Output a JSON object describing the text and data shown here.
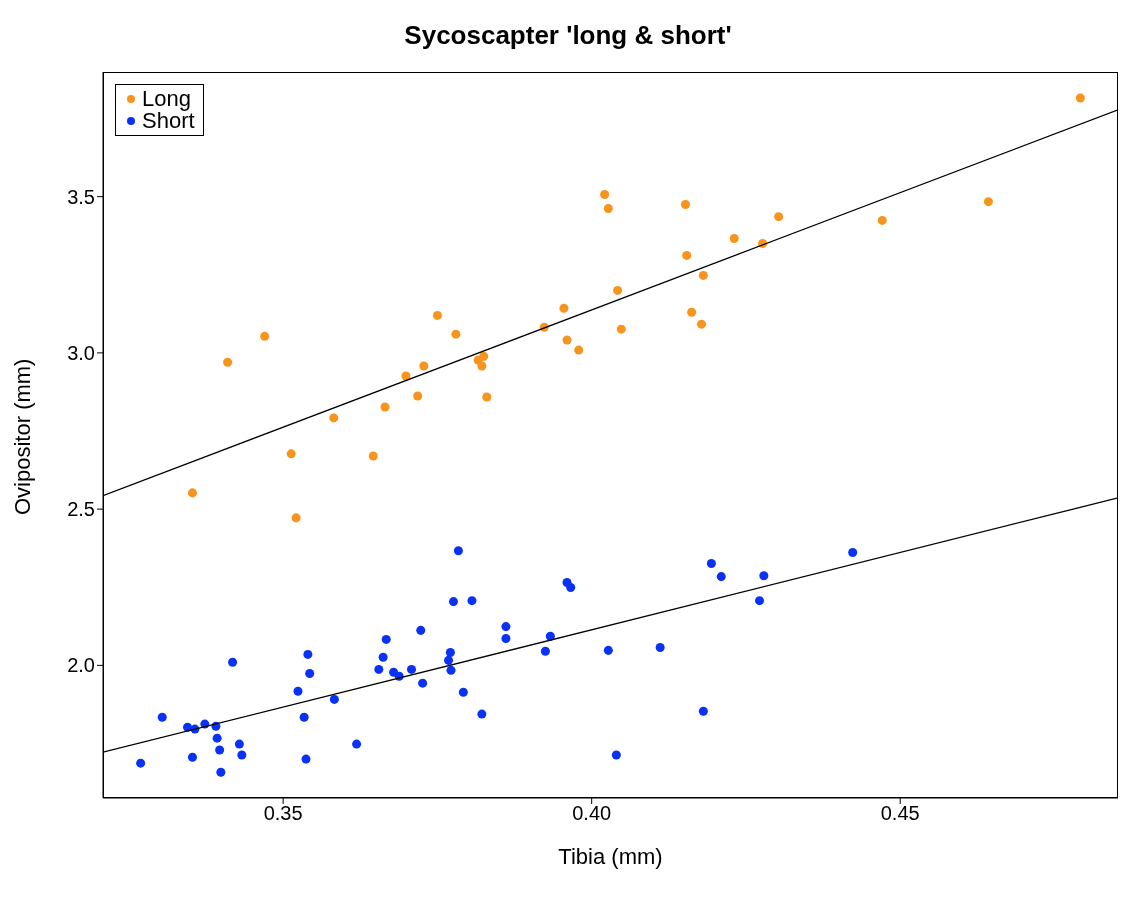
{
  "chart_data": {
    "type": "scatter",
    "title": "Sycoscapter 'long & short'",
    "xlabel": "Tibia (mm)",
    "ylabel": "Ovipositor (mm)",
    "xlim": [
      0.3208,
      0.4853
    ],
    "ylim": [
      1.5755,
      3.899
    ],
    "xticks": [
      {
        "value": 0.35,
        "label": "0.35"
      },
      {
        "value": 0.4,
        "label": "0.40"
      },
      {
        "value": 0.45,
        "label": "0.45"
      }
    ],
    "yticks": [
      {
        "value": 2.0,
        "label": "2.0"
      },
      {
        "value": 2.5,
        "label": "2.5"
      },
      {
        "value": 3.0,
        "label": "3.0"
      },
      {
        "value": 3.5,
        "label": "3.5"
      }
    ],
    "legend": "top left",
    "marker": "circle",
    "series": [
      {
        "name": "Long",
        "color": "#f7941d",
        "x": [
          0.3353,
          0.341,
          0.347,
          0.3513,
          0.3521,
          0.3582,
          0.3646,
          0.3665,
          0.3699,
          0.3718,
          0.3728,
          0.375,
          0.378,
          0.3816,
          0.3825,
          0.3822,
          0.383,
          0.3923,
          0.3955,
          0.396,
          0.3979,
          0.4021,
          0.4027,
          0.4042,
          0.4048,
          0.4152,
          0.4154,
          0.4162,
          0.4181,
          0.4178,
          0.4231,
          0.4277,
          0.4303,
          0.4471,
          0.4643,
          0.4792
        ],
        "values": [
          2.552,
          2.97,
          3.053,
          2.677,
          2.472,
          2.792,
          2.67,
          2.827,
          2.926,
          2.862,
          2.958,
          3.12,
          3.06,
          2.977,
          2.989,
          2.958,
          2.859,
          3.082,
          3.143,
          3.041,
          3.009,
          3.507,
          3.462,
          3.2,
          3.076,
          3.475,
          3.312,
          3.13,
          3.248,
          3.092,
          3.366,
          3.35,
          3.436,
          3.424,
          3.484,
          3.816
        ]
      },
      {
        "name": "Short",
        "color": "#0a32f5",
        "x": [
          0.3269,
          0.3304,
          0.3345,
          0.3353,
          0.3357,
          0.3373,
          0.3391,
          0.3393,
          0.3397,
          0.3399,
          0.3418,
          0.3429,
          0.3433,
          0.3524,
          0.3534,
          0.3537,
          0.354,
          0.3543,
          0.3583,
          0.3619,
          0.3655,
          0.3662,
          0.3667,
          0.3679,
          0.3688,
          0.3708,
          0.3723,
          0.3726,
          0.3768,
          0.3771,
          0.3772,
          0.3776,
          0.3784,
          0.3792,
          0.3806,
          0.3822,
          0.3861,
          0.3861,
          0.3925,
          0.3933,
          0.396,
          0.3966,
          0.4027,
          0.404,
          0.4111,
          0.4181,
          0.4194,
          0.421,
          0.4272,
          0.4279,
          0.4423
        ],
        "values": [
          1.687,
          1.834,
          1.802,
          1.706,
          1.796,
          1.812,
          1.805,
          1.767,
          1.729,
          1.658,
          2.01,
          1.748,
          1.713,
          1.917,
          1.834,
          1.7,
          2.035,
          1.974,
          1.891,
          1.748,
          1.987,
          2.026,
          2.083,
          1.978,
          1.965,
          1.987,
          2.112,
          1.943,
          2.016,
          2.041,
          1.984,
          2.204,
          2.367,
          1.914,
          2.207,
          1.844,
          2.124,
          2.086,
          2.045,
          2.093,
          2.265,
          2.249,
          2.048,
          1.713,
          2.057,
          1.853,
          2.326,
          2.284,
          2.207,
          2.287,
          2.361
        ]
      },
      {
        "type": "line",
        "marker": "none",
        "color": "#000000",
        "x": [
          0.3208,
          0.4853
        ],
        "values": [
          2.543,
          3.778
        ]
      },
      {
        "type": "line",
        "marker": "none",
        "color": "#000000",
        "x": [
          0.3208,
          0.4853
        ],
        "values": [
          1.722,
          2.536
        ]
      }
    ]
  }
}
